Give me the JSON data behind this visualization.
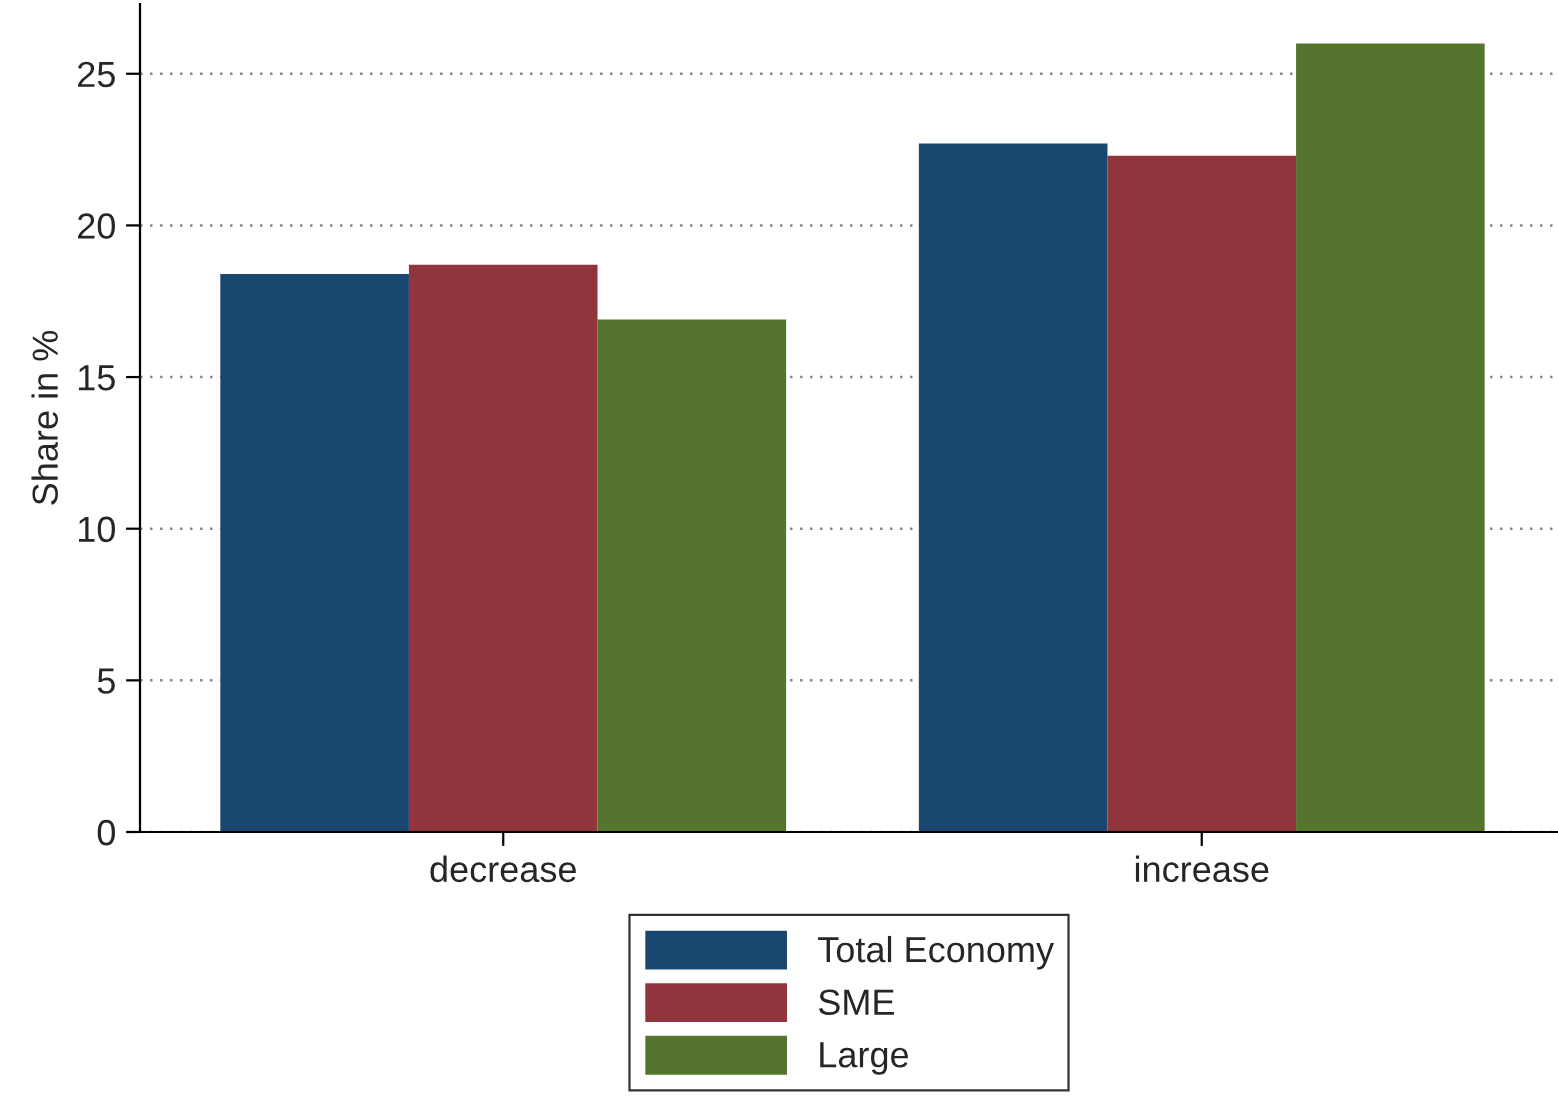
{
  "chart_data": {
    "type": "bar",
    "ylabel": "Share in %",
    "categories": [
      "decrease",
      "increase"
    ],
    "series": [
      {
        "name": "Total Economy",
        "color": "#1a476f",
        "values": [
          18.4,
          22.7
        ]
      },
      {
        "name": "SME",
        "color": "#90353b",
        "values": [
          18.7,
          22.3
        ]
      },
      {
        "name": "Large",
        "color": "#55752f",
        "values": [
          16.9,
          26.0
        ]
      }
    ],
    "ylim": [
      0,
      27.3
    ],
    "yticks": [
      0,
      5,
      10,
      15,
      20,
      25
    ],
    "grid": "y",
    "legend": "bottom"
  }
}
